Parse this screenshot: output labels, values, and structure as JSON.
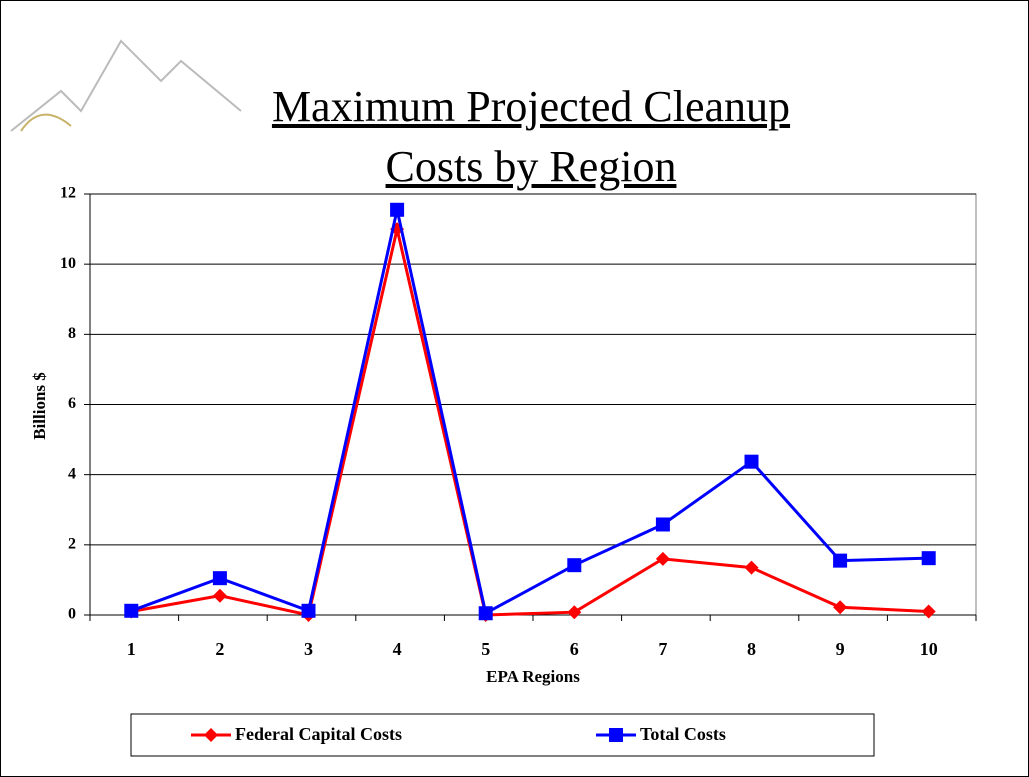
{
  "chart_data": {
    "type": "line",
    "title": "Maximum Projected Cleanup Costs by Region",
    "x_label": "EPA Regions",
    "y_label": "Billions $",
    "categories": [
      "1",
      "2",
      "3",
      "4",
      "5",
      "6",
      "7",
      "8",
      "9",
      "10"
    ],
    "series": [
      {
        "name": "Federal Capital Costs",
        "color": "#ff0000",
        "marker": "diamond",
        "values": [
          0.1,
          0.55,
          0,
          11,
          0,
          0.08,
          1.6,
          1.35,
          0.22,
          0.1
        ]
      },
      {
        "name": "Total Costs",
        "color": "#0000ff",
        "marker": "square",
        "values": [
          0.12,
          1.05,
          0.12,
          11.55,
          0.05,
          1.42,
          2.58,
          4.37,
          1.55,
          1.62
        ]
      }
    ],
    "ylim": [
      0,
      12
    ],
    "yticks": [
      0,
      2,
      4,
      6,
      8,
      10,
      12
    ],
    "grid": true,
    "legend": "bottom"
  }
}
